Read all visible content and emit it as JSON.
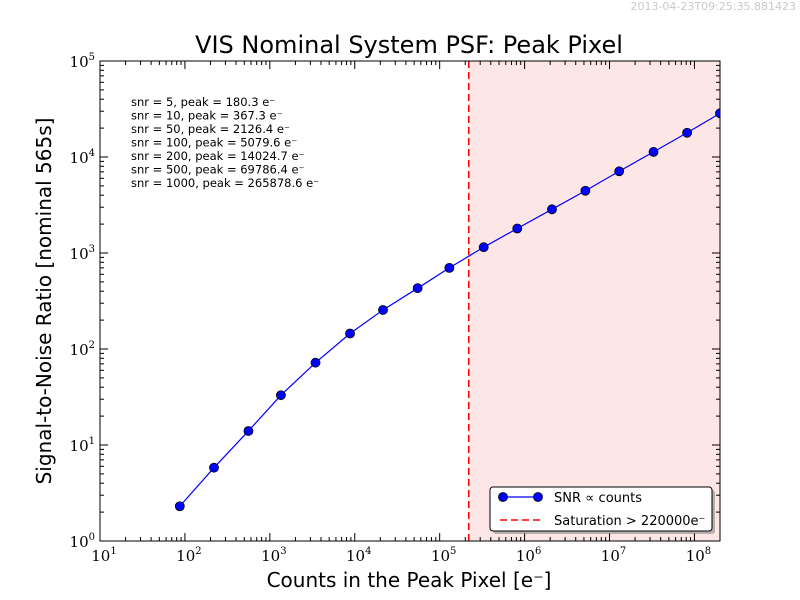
{
  "timestamp": "2013-04-23T09:25:35.881423",
  "chart_data": {
    "type": "line",
    "title": "VIS Nominal System PSF: Peak Pixel",
    "xlabel": "Counts in the Peak Pixel [e⁻]",
    "ylabel": "Signal-to-Noise Ratio [nominal 565s]",
    "xscale": "log",
    "yscale": "log",
    "xlim": [
      10,
      200000000
    ],
    "ylim": [
      1,
      100000
    ],
    "x_tick_labels": [
      {
        "value": 10,
        "base": "10",
        "exp": "1"
      },
      {
        "value": 100,
        "base": "10",
        "exp": "2"
      },
      {
        "value": 1000,
        "base": "10",
        "exp": "3"
      },
      {
        "value": 10000,
        "base": "10",
        "exp": "4"
      },
      {
        "value": 100000,
        "base": "10",
        "exp": "5"
      },
      {
        "value": 1000000,
        "base": "10",
        "exp": "6"
      },
      {
        "value": 10000000,
        "base": "10",
        "exp": "7"
      },
      {
        "value": 100000000,
        "base": "10",
        "exp": "8"
      }
    ],
    "y_tick_labels": [
      {
        "value": 1,
        "base": "10",
        "exp": "0"
      },
      {
        "value": 10,
        "base": "10",
        "exp": "1"
      },
      {
        "value": 100,
        "base": "10",
        "exp": "2"
      },
      {
        "value": 1000,
        "base": "10",
        "exp": "3"
      },
      {
        "value": 10000,
        "base": "10",
        "exp": "4"
      },
      {
        "value": 100000,
        "base": "10",
        "exp": "5"
      }
    ],
    "grid": false,
    "series": [
      {
        "name": "SNR ∝ counts",
        "color": "#0000ff",
        "marker": "circle",
        "x": [
          87,
          220,
          560,
          1350,
          3450,
          8800,
          21500,
          55000,
          130000,
          330000,
          820000,
          2100000,
          5200000,
          13000000,
          33000000,
          82000000,
          200000000
        ],
        "y": [
          2.3,
          5.8,
          14,
          33,
          72,
          145,
          255,
          430,
          700,
          1150,
          1800,
          2850,
          4450,
          7100,
          11300,
          17900,
          28500
        ]
      }
    ],
    "saturation": {
      "label": "Saturation > 220000e⁻",
      "value": 220000,
      "color": "#ff0000",
      "fill": "#fde6e6"
    },
    "annotations": [
      "snr = 5, peak = 180.3 e⁻",
      "snr = 10, peak = 367.3 e⁻",
      "snr = 50, peak = 2126.4 e⁻",
      "snr = 100, peak = 5079.6 e⁻",
      "snr = 200, peak = 14024.7 e⁻",
      "snr = 500, peak = 69786.4 e⁻",
      "snr = 1000, peak = 265878.6 e⁻"
    ],
    "legend": {
      "placement": "lower-right",
      "entries": [
        "SNR ∝ counts",
        "Saturation > 220000e⁻"
      ]
    }
  }
}
